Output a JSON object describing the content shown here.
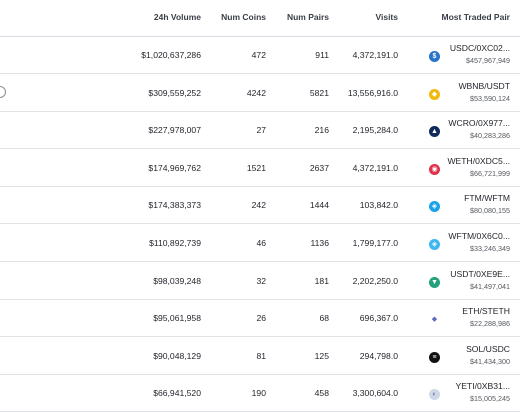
{
  "columns": {
    "volume": "24h Volume",
    "coins": "Num Coins",
    "pairs": "Num Pairs",
    "visits": "Visits",
    "pair": "Most Traded Pair"
  },
  "rows": [
    {
      "volume": "$1,020,637,286",
      "coins": "472",
      "pairs": "911",
      "visits": "4,372,191.0",
      "pair": "USDC/0XC02...",
      "pair_volume": "$457,967,949",
      "icon": "usdc-icon",
      "icon_color": "#2775ca"
    },
    {
      "volume": "$309,559,252",
      "coins": "4242",
      "pairs": "5821",
      "visits": "13,556,916.0",
      "pair": "WBNB/USDT",
      "pair_volume": "$53,590,124",
      "icon": "bnb-icon",
      "icon_color": "#f0b90b"
    },
    {
      "volume": "$227,978,007",
      "coins": "27",
      "pairs": "216",
      "visits": "2,195,284.0",
      "pair": "WCRO/0X977...",
      "pair_volume": "$40,283,286",
      "icon": "cro-icon",
      "icon_color": "#102a5c"
    },
    {
      "volume": "$174,969,762",
      "coins": "1521",
      "pairs": "2637",
      "visits": "4,372,191.0",
      "pair": "WETH/0XDC5...",
      "pair_volume": "$66,721,999",
      "icon": "weth-icon",
      "icon_color": "#e0304a"
    },
    {
      "volume": "$174,383,373",
      "coins": "242",
      "pairs": "1444",
      "visits": "103,842.0",
      "pair": "FTM/WFTM",
      "pair_volume": "$80,080,155",
      "icon": "ftm-icon",
      "icon_color": "#1aa3e8"
    },
    {
      "volume": "$110,892,739",
      "coins": "46",
      "pairs": "1136",
      "visits": "1,799,177.0",
      "pair": "WFTM/0X6C0...",
      "pair_volume": "$33,246,349",
      "icon": "wftm-icon",
      "icon_color": "#3fb6f0"
    },
    {
      "volume": "$98,039,248",
      "coins": "32",
      "pairs": "181",
      "visits": "2,202,250.0",
      "pair": "USDT/0XE9E...",
      "pair_volume": "$41,497,041",
      "icon": "usdt-icon",
      "icon_color": "#26a17b"
    },
    {
      "volume": "$95,061,958",
      "coins": "26",
      "pairs": "68",
      "visits": "696,367.0",
      "pair": "ETH/STETH",
      "pair_volume": "$22,288,986",
      "icon": "eth-icon",
      "icon_color": "#5b6cc0"
    },
    {
      "volume": "$90,048,129",
      "coins": "81",
      "pairs": "125",
      "visits": "294,798.0",
      "pair": "SOL/USDC",
      "pair_volume": "$41,434,300",
      "icon": "sol-icon",
      "icon_color": "#111111"
    },
    {
      "volume": "$66,941,520",
      "coins": "190",
      "pairs": "458",
      "visits": "3,300,604.0",
      "pair": "YETI/0XB31...",
      "pair_volume": "$15,005,245",
      "icon": "yeti-icon",
      "icon_color": "#cfd8e8"
    }
  ]
}
